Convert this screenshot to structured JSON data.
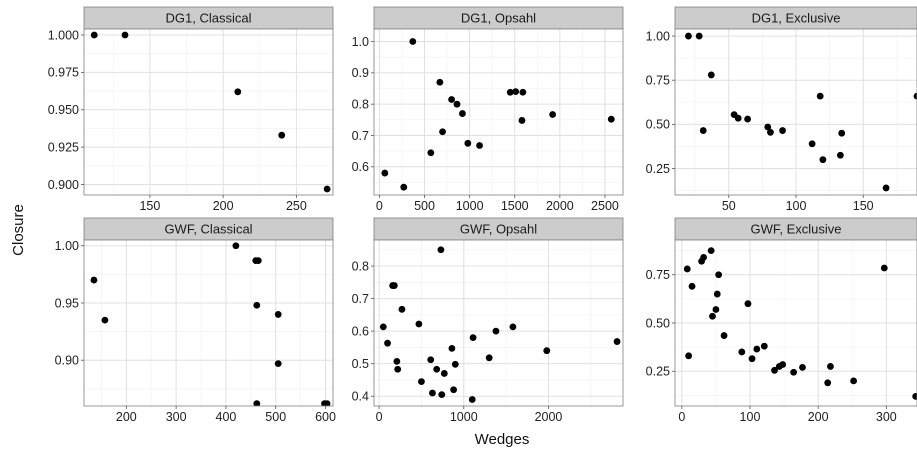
{
  "figure": {
    "xlabel": "Wedges",
    "ylabel": "Closure"
  },
  "style": {
    "strip_fill": "#cccccc",
    "strip_border": "#7f7f7f",
    "panel_border": "#7f7f7f",
    "grid_major": "#e0e0e0",
    "grid_minor": "#f4f4f4",
    "point_color": "#000000"
  },
  "chart_data": [
    {
      "type": "scatter",
      "title": "DG1, Classical",
      "xlim": [
        105,
        275
      ],
      "ylim": [
        0.893,
        1.004
      ],
      "xticks": [
        150,
        200,
        250
      ],
      "yticks": [
        0.9,
        0.925,
        0.95,
        0.975,
        1.0
      ],
      "yticklabels": [
        "0.900",
        "0.925",
        "0.950",
        "0.975",
        "1.000"
      ],
      "points": [
        [
          112,
          1.0
        ],
        [
          133,
          1.0
        ],
        [
          210,
          0.962
        ],
        [
          240,
          0.933
        ],
        [
          271,
          0.897
        ]
      ]
    },
    {
      "type": "scatter",
      "title": "DG1, Opsahl",
      "xlim": [
        -60,
        2700
      ],
      "ylim": [
        0.51,
        1.04
      ],
      "xticks": [
        0,
        500,
        1000,
        1500,
        2000,
        2500
      ],
      "yticks": [
        0.6,
        0.7,
        0.8,
        0.9,
        1.0
      ],
      "yticklabels": [
        "0.6",
        "0.7",
        "0.8",
        "0.9",
        "1.0"
      ],
      "points": [
        [
          60,
          0.58
        ],
        [
          270,
          0.535
        ],
        [
          370,
          1.0
        ],
        [
          570,
          0.645
        ],
        [
          670,
          0.87
        ],
        [
          700,
          0.712
        ],
        [
          800,
          0.815
        ],
        [
          860,
          0.8
        ],
        [
          920,
          0.77
        ],
        [
          980,
          0.675
        ],
        [
          1110,
          0.668
        ],
        [
          1450,
          0.838
        ],
        [
          1510,
          0.84
        ],
        [
          1580,
          0.748
        ],
        [
          1590,
          0.838
        ],
        [
          1920,
          0.767
        ],
        [
          2570,
          0.752
        ]
      ]
    },
    {
      "type": "scatter",
      "title": "DG1, Exclusive",
      "xlim": [
        10,
        190
      ],
      "ylim": [
        0.1,
        1.04
      ],
      "xticks": [
        50,
        100,
        150
      ],
      "yticks": [
        0.25,
        0.5,
        0.75,
        1.0
      ],
      "yticklabels": [
        "0.25",
        "0.50",
        "0.75",
        "1.00"
      ],
      "points": [
        [
          20,
          1.0
        ],
        [
          28,
          1.0
        ],
        [
          31,
          0.465
        ],
        [
          37,
          0.78
        ],
        [
          54,
          0.555
        ],
        [
          57,
          0.535
        ],
        [
          64,
          0.53
        ],
        [
          79,
          0.485
        ],
        [
          81,
          0.455
        ],
        [
          90,
          0.465
        ],
        [
          112,
          0.39
        ],
        [
          118,
          0.66
        ],
        [
          120,
          0.3
        ],
        [
          133,
          0.325
        ],
        [
          134,
          0.45
        ],
        [
          167,
          0.14
        ],
        [
          190,
          0.66
        ]
      ]
    },
    {
      "type": "scatter",
      "title": "GWF, Classical",
      "xlim": [
        115,
        615
      ],
      "ylim": [
        0.86,
        1.005
      ],
      "xticks": [
        200,
        300,
        400,
        500,
        600
      ],
      "yticks": [
        0.9,
        0.95,
        1.0
      ],
      "yticklabels": [
        "0.90",
        "0.95",
        "1.00"
      ],
      "points": [
        [
          135,
          0.97
        ],
        [
          157,
          0.935
        ],
        [
          420,
          1.0
        ],
        [
          460,
          0.987
        ],
        [
          465,
          0.987
        ],
        [
          462,
          0.948
        ],
        [
          462,
          0.862
        ],
        [
          505,
          0.94
        ],
        [
          505,
          0.897
        ],
        [
          598,
          0.862
        ],
        [
          603,
          0.862
        ]
      ]
    },
    {
      "type": "scatter",
      "title": "GWF, Opsahl",
      "xlim": [
        -60,
        2880
      ],
      "ylim": [
        0.37,
        0.88
      ],
      "xticks": [
        0,
        1000,
        2000
      ],
      "yticks": [
        0.4,
        0.5,
        0.6,
        0.7,
        0.8
      ],
      "yticklabels": [
        "0.4",
        "0.5",
        "0.6",
        "0.7",
        "0.8"
      ],
      "points": [
        [
          50,
          0.613
        ],
        [
          100,
          0.563
        ],
        [
          160,
          0.74
        ],
        [
          180,
          0.74
        ],
        [
          210,
          0.507
        ],
        [
          220,
          0.483
        ],
        [
          270,
          0.667
        ],
        [
          470,
          0.622
        ],
        [
          500,
          0.445
        ],
        [
          610,
          0.512
        ],
        [
          630,
          0.41
        ],
        [
          680,
          0.483
        ],
        [
          730,
          0.85
        ],
        [
          740,
          0.405
        ],
        [
          770,
          0.47
        ],
        [
          860,
          0.547
        ],
        [
          880,
          0.42
        ],
        [
          900,
          0.498
        ],
        [
          1100,
          0.39
        ],
        [
          1110,
          0.58
        ],
        [
          1300,
          0.518
        ],
        [
          1380,
          0.6
        ],
        [
          1580,
          0.613
        ],
        [
          1980,
          0.54
        ],
        [
          2810,
          0.568
        ]
      ]
    },
    {
      "type": "scatter",
      "title": "GWF, Exclusive",
      "xlim": [
        -10,
        345
      ],
      "ylim": [
        0.07,
        0.93
      ],
      "xticks": [
        0,
        100,
        200,
        300
      ],
      "yticks": [
        0.25,
        0.5,
        0.75
      ],
      "yticklabels": [
        "0.25",
        "0.50",
        "0.75"
      ],
      "points": [
        [
          8,
          0.78
        ],
        [
          10,
          0.33
        ],
        [
          15,
          0.69
        ],
        [
          29,
          0.82
        ],
        [
          32,
          0.84
        ],
        [
          43,
          0.875
        ],
        [
          45,
          0.535
        ],
        [
          50,
          0.57
        ],
        [
          52,
          0.65
        ],
        [
          54,
          0.75
        ],
        [
          62,
          0.435
        ],
        [
          88,
          0.35
        ],
        [
          97,
          0.6
        ],
        [
          103,
          0.315
        ],
        [
          110,
          0.365
        ],
        [
          121,
          0.38
        ],
        [
          136,
          0.255
        ],
        [
          143,
          0.275
        ],
        [
          148,
          0.285
        ],
        [
          164,
          0.245
        ],
        [
          177,
          0.27
        ],
        [
          214,
          0.19
        ],
        [
          218,
          0.275
        ],
        [
          252,
          0.2
        ],
        [
          297,
          0.785
        ],
        [
          343,
          0.12
        ]
      ]
    }
  ]
}
